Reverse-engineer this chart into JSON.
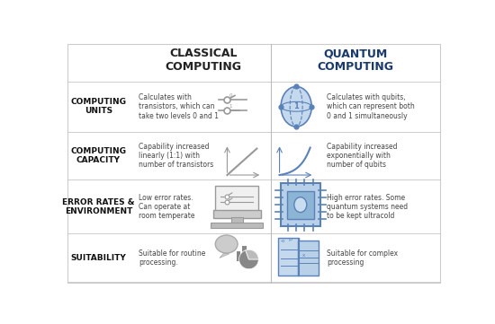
{
  "bg_color": "#ffffff",
  "border_color": "#cccccc",
  "divider_color": "#bbbbbb",
  "title_classical": "CLASSICAL\nCOMPUTING",
  "title_quantum": "QUANTUM\nCOMPUTING",
  "title_classical_color": "#222222",
  "title_quantum_color": "#1a3a6b",
  "row_labels": [
    "COMPUTING\nUNITS",
    "COMPUTING\nCAPACITY",
    "ERROR RATES &\nENVIRONMENT",
    "SUITABILITY"
  ],
  "row_label_color": "#111111",
  "classical_texts": [
    "Calculates with\ntransistors, which can\ntake two levels 0 and 1",
    "Capability increased\nlinearly (1:1) with\nnumber of transistors",
    "Low error rates.\nCan operate at\nroom temperate",
    "Suitable for routine\nprocessing."
  ],
  "quantum_texts": [
    "Calculates with qubits,\nwhich can represent both\n0 and 1 simultaneously",
    "Capability increased\nexponentially with\nnumber of qubits",
    "High error rates. Some\nquantum systems need\nto be kept ultracold",
    "Suitable for complex\nprocessing"
  ],
  "text_color": "#444444",
  "accent_color": "#5b82b8",
  "icon_color_classical": "#999999",
  "icon_color_quantum": "#5b82b8",
  "icon_fill_quantum": "#c5d9ee",
  "icon_fill_classical": "#dddddd"
}
